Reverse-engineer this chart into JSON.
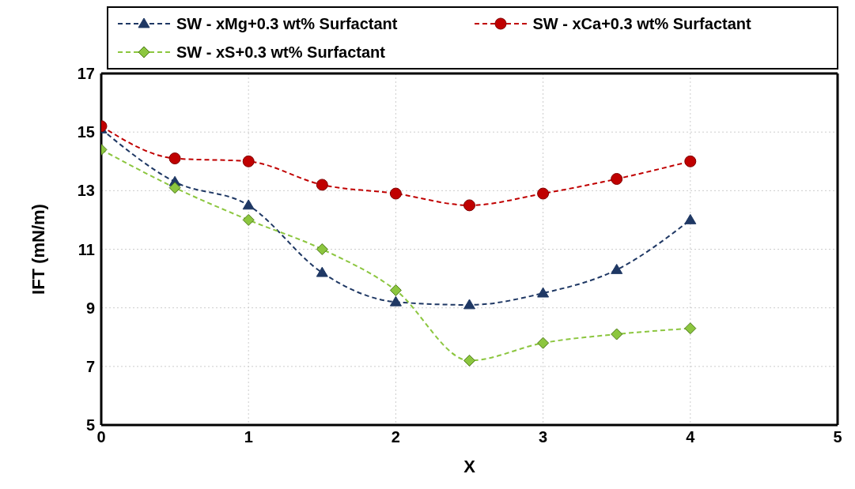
{
  "chart_data": {
    "type": "line",
    "xlabel": "X",
    "ylabel": "IFT (mN/m)",
    "x": [
      0,
      0.5,
      1,
      1.5,
      2,
      2.5,
      3,
      3.5,
      4
    ],
    "series": [
      {
        "name": "SW - xMg+0.3 wt% Surfactant",
        "color": "#1f3864",
        "marker": "triangle",
        "values": [
          15.1,
          13.3,
          12.5,
          10.2,
          9.2,
          9.1,
          9.5,
          10.3,
          12.0
        ]
      },
      {
        "name": "SW - xCa+0.3 wt% Surfactant",
        "color": "#c00000",
        "marker": "circle",
        "values": [
          15.2,
          14.1,
          14.0,
          13.2,
          12.9,
          12.5,
          12.9,
          13.4,
          14.0
        ]
      },
      {
        "name": "SW - xS+0.3 wt% Surfactant",
        "color": "#8cc63f",
        "marker": "diamond",
        "values": [
          14.4,
          13.1,
          12.0,
          11.0,
          9.6,
          7.2,
          7.8,
          8.1,
          8.3
        ]
      }
    ],
    "xlim": [
      0,
      5
    ],
    "xticks": [
      0,
      1,
      2,
      3,
      4,
      5
    ],
    "ylim": [
      5,
      17
    ],
    "yticks": [
      5,
      7,
      9,
      11,
      13,
      15,
      17
    ],
    "grid": true,
    "legend": "top",
    "line_style": "dashed"
  }
}
